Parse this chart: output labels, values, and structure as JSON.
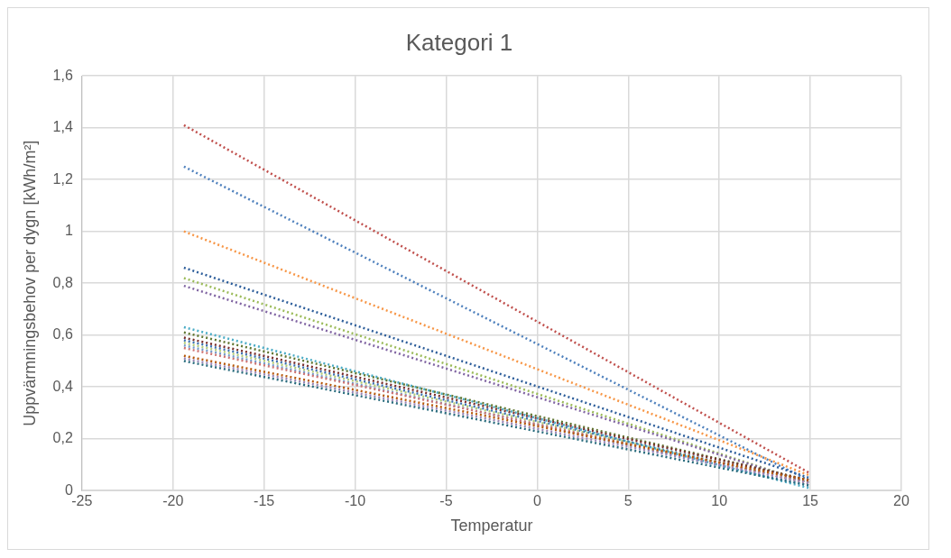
{
  "chart_data": {
    "type": "line",
    "title": "Kategori 1",
    "xlabel": "Temperatur",
    "ylabel": "Uppvärmningsbehov per dygn [kWh/m²]",
    "x": [
      -19.4,
      14.9
    ],
    "xlim": [
      -25,
      20
    ],
    "xticks": [
      -25,
      -20,
      -15,
      -10,
      -5,
      0,
      5,
      10,
      15,
      20
    ],
    "ylim": [
      0,
      1.6
    ],
    "yticks": [
      0,
      {
        "value": 0.2,
        "label": "0,2"
      },
      {
        "value": 0.4,
        "label": "0,4"
      },
      {
        "value": 0.6,
        "label": "0,6"
      },
      {
        "value": 0.8,
        "label": "0,8"
      },
      1,
      {
        "value": 1.2,
        "label": "1,2"
      },
      {
        "value": 1.4,
        "label": "1,4"
      },
      {
        "value": 1.6,
        "label": "1,6"
      }
    ],
    "grid": true,
    "legend": false,
    "marker": "none",
    "line_style": "dotted",
    "series": [
      {
        "color": "#c0504d",
        "values": [
          1.41,
          0.07
        ]
      },
      {
        "color": "#4f81bd",
        "values": [
          1.25,
          0.04
        ]
      },
      {
        "color": "#f79646",
        "values": [
          1.0,
          0.06
        ]
      },
      {
        "color": "#2c5d9a",
        "values": [
          0.86,
          0.05
        ]
      },
      {
        "color": "#9bbb59",
        "values": [
          0.82,
          0.03
        ]
      },
      {
        "color": "#8064a2",
        "values": [
          0.79,
          0.03
        ]
      },
      {
        "color": "#4bacc6",
        "values": [
          0.63,
          0.01
        ]
      },
      {
        "color": "#5f7530",
        "values": [
          0.61,
          0.04
        ]
      },
      {
        "color": "#772c2a",
        "values": [
          0.59,
          0.04
        ]
      },
      {
        "color": "#3a6fb0",
        "values": [
          0.58,
          0.03
        ]
      },
      {
        "color": "#b3cc7a",
        "values": [
          0.57,
          0.03
        ]
      },
      {
        "color": "#729aca",
        "values": [
          0.56,
          0.02
        ]
      },
      {
        "color": "#cd7371",
        "values": [
          0.55,
          0.03
        ]
      },
      {
        "color": "#b65708",
        "values": [
          0.52,
          0.04
        ]
      },
      {
        "color": "#9983b5",
        "values": [
          0.51,
          0.03
        ]
      },
      {
        "color": "#276a7c",
        "values": [
          0.5,
          0.02
        ]
      }
    ]
  }
}
